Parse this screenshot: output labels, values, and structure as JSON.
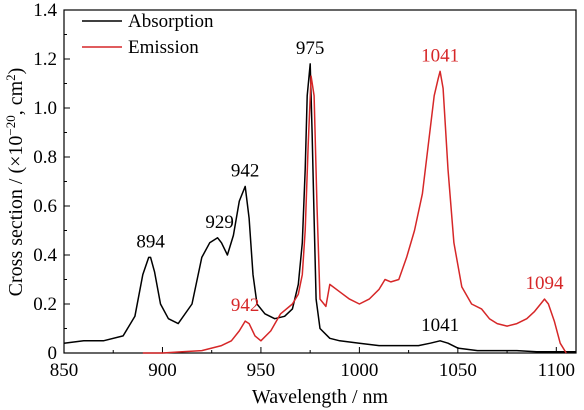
{
  "chart_data": {
    "type": "line",
    "title": "",
    "xlabel": "Wavelength / nm",
    "ylabel_prefix": "Cross section / (×10",
    "ylabel_exp": "−20",
    "ylabel_mid": ", cm",
    "ylabel_exp2": "2",
    "ylabel_suffix": ")",
    "xlim": [
      850,
      1110
    ],
    "ylim": [
      0,
      1.4
    ],
    "xticks": [
      850,
      900,
      950,
      1000,
      1050,
      1100
    ],
    "yticks": [
      0,
      0.2,
      0.4,
      0.6,
      0.8,
      1.0,
      1.2,
      1.4
    ],
    "xtick_labels": [
      "850",
      "900",
      "950",
      "1000",
      "1050",
      "1100"
    ],
    "ytick_labels": [
      "0",
      "0.2",
      "0.4",
      "0.6",
      "0.8",
      "1.0",
      "1.2",
      "1.4"
    ],
    "grid": false,
    "legend_position": "top-left",
    "series": [
      {
        "name": "Absorption",
        "color": "#000000",
        "x": [
          850,
          860,
          870,
          880,
          886,
          890,
          893,
          894,
          896,
          899,
          903,
          908,
          915,
          920,
          924,
          928,
          930,
          933,
          936,
          939,
          942,
          944,
          946,
          948,
          952,
          957,
          962,
          966,
          969,
          971,
          972.5,
          973.5,
          975,
          976,
          977,
          978,
          980,
          985,
          990,
          1000,
          1010,
          1020,
          1030,
          1036,
          1041,
          1045,
          1050,
          1060,
          1070,
          1080,
          1090,
          1100,
          1110
        ],
        "y": [
          0.04,
          0.05,
          0.05,
          0.07,
          0.15,
          0.32,
          0.39,
          0.39,
          0.33,
          0.2,
          0.14,
          0.12,
          0.2,
          0.39,
          0.45,
          0.47,
          0.45,
          0.4,
          0.48,
          0.62,
          0.68,
          0.55,
          0.32,
          0.2,
          0.16,
          0.14,
          0.15,
          0.18,
          0.28,
          0.45,
          0.75,
          1.05,
          1.18,
          0.9,
          0.55,
          0.22,
          0.1,
          0.06,
          0.05,
          0.04,
          0.03,
          0.03,
          0.03,
          0.04,
          0.05,
          0.04,
          0.02,
          0.01,
          0.01,
          0.01,
          0.005,
          0.005,
          0.005
        ]
      },
      {
        "name": "Emission",
        "color": "#d62728",
        "x": [
          890,
          900,
          910,
          920,
          930,
          935,
          939,
          942,
          944,
          947,
          950,
          955,
          960,
          966,
          969,
          971,
          972.5,
          974,
          975.5,
          977,
          978.5,
          980,
          983,
          985,
          990,
          995,
          1000,
          1005,
          1010,
          1013,
          1016,
          1020,
          1024,
          1028,
          1032,
          1035,
          1038,
          1040,
          1041,
          1042.5,
          1045,
          1048,
          1052,
          1057,
          1062,
          1066,
          1070,
          1075,
          1080,
          1085,
          1089,
          1092,
          1094,
          1096,
          1099,
          1102,
          1105
        ],
        "y": [
          0.0,
          0.0,
          0.005,
          0.01,
          0.03,
          0.05,
          0.09,
          0.13,
          0.12,
          0.07,
          0.05,
          0.09,
          0.16,
          0.2,
          0.24,
          0.32,
          0.5,
          0.85,
          1.13,
          1.05,
          0.6,
          0.22,
          0.19,
          0.28,
          0.25,
          0.22,
          0.2,
          0.22,
          0.26,
          0.3,
          0.29,
          0.3,
          0.39,
          0.5,
          0.65,
          0.85,
          1.05,
          1.12,
          1.15,
          1.08,
          0.75,
          0.45,
          0.27,
          0.2,
          0.18,
          0.14,
          0.12,
          0.11,
          0.12,
          0.14,
          0.17,
          0.2,
          0.22,
          0.2,
          0.13,
          0.04,
          0.0
        ]
      }
    ],
    "annotations": [
      {
        "text": "894",
        "x": 894,
        "y": 0.39,
        "series": 0
      },
      {
        "text": "929",
        "x": 929,
        "y": 0.47,
        "series": 0
      },
      {
        "text": "942",
        "x": 942,
        "y": 0.68,
        "series": 0
      },
      {
        "text": "975",
        "x": 975,
        "y": 1.18,
        "series": 0
      },
      {
        "text": "1041",
        "x": 1041,
        "y": 0.05,
        "series": 0
      },
      {
        "text": "942",
        "x": 942,
        "y": 0.13,
        "series": 1
      },
      {
        "text": "1041",
        "x": 1041,
        "y": 1.15,
        "series": 1
      },
      {
        "text": "1094",
        "x": 1094,
        "y": 0.22,
        "series": 1
      }
    ]
  }
}
